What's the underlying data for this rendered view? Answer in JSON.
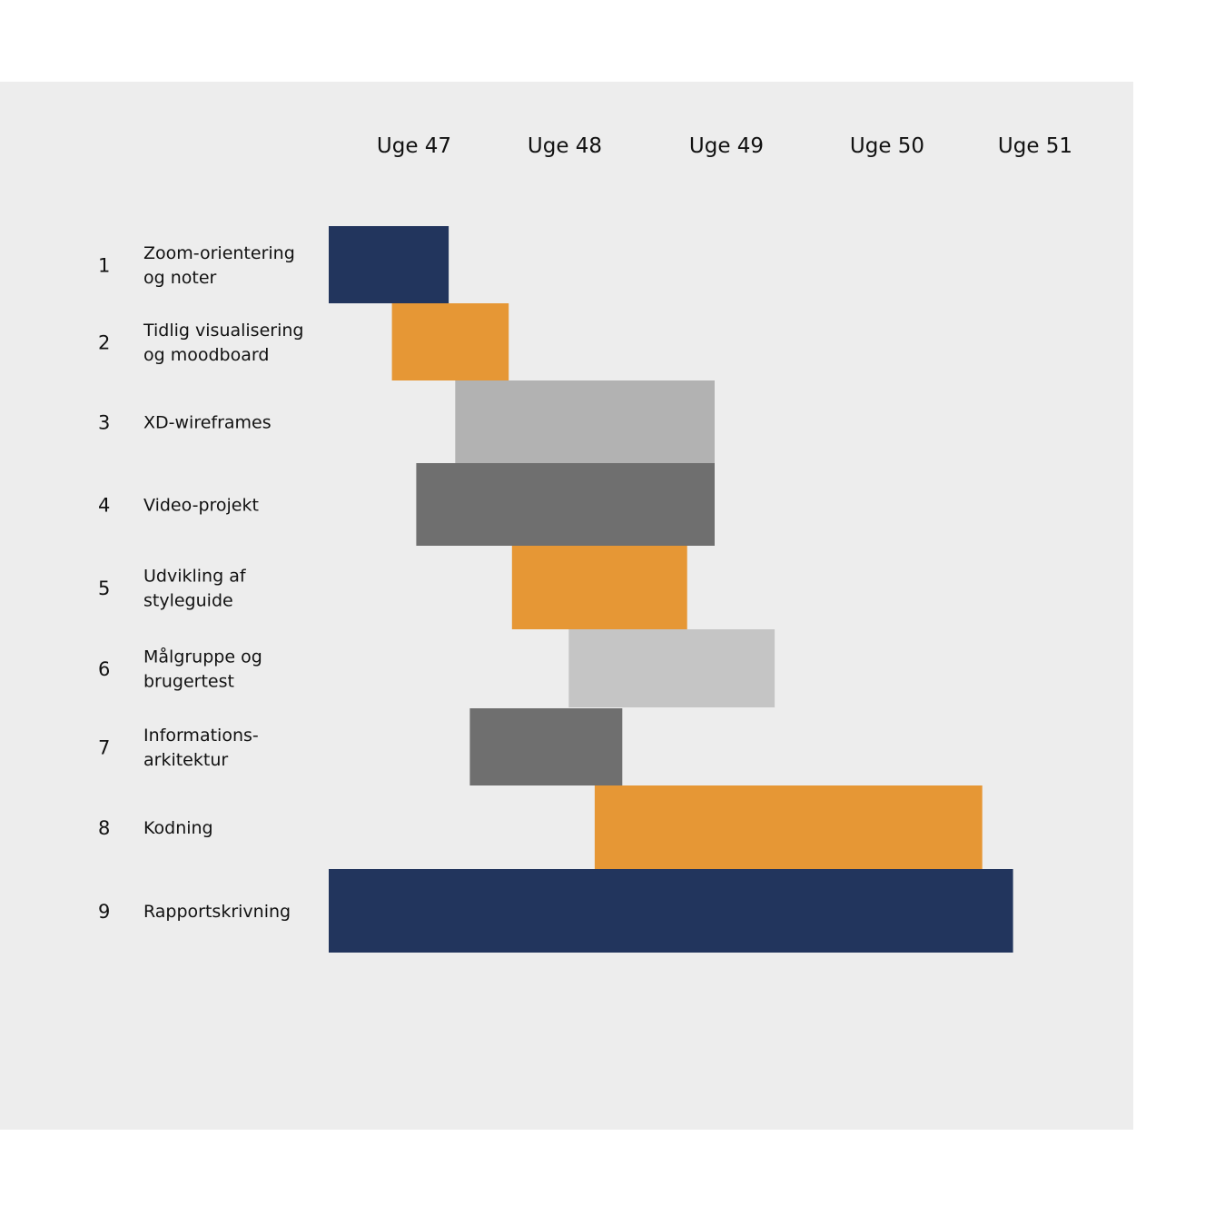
{
  "chart_data": {
    "type": "gantt",
    "x_axis": {
      "unit": "Uge",
      "ticks": [
        {
          "value": 47,
          "label": "Uge 47"
        },
        {
          "value": 48,
          "label": "Uge 48"
        },
        {
          "value": 49,
          "label": "Uge 49"
        },
        {
          "value": 50,
          "label": "Uge 50"
        },
        {
          "value": 51,
          "label": "Uge 51"
        }
      ],
      "range": [
        46.6,
        51.2
      ],
      "labels_position": "top"
    },
    "grid": false,
    "legend": "none",
    "tasks": [
      {
        "number": "1",
        "label_lines": [
          "Zoom-orientering",
          "og noter"
        ],
        "start": 46.62,
        "end": 47.36,
        "color": "#22355d"
      },
      {
        "number": "2",
        "label_lines": [
          "Tidlig visualisering",
          "og moodboard"
        ],
        "start": 47.01,
        "end": 47.73,
        "color": "#e69735"
      },
      {
        "number": "3",
        "label_lines": [
          "XD-wireframes"
        ],
        "start": 47.4,
        "end": 49.0,
        "color": "#b2b2b2"
      },
      {
        "number": "4",
        "label_lines": [
          "Video-projekt"
        ],
        "start": 47.16,
        "end": 49.0,
        "color": "#6f6f6f"
      },
      {
        "number": "5",
        "label_lines": [
          "Udvikling af",
          "styleguide"
        ],
        "start": 47.75,
        "end": 48.83,
        "color": "#e69735"
      },
      {
        "number": "6",
        "label_lines": [
          "Målgruppe og",
          "brugertest"
        ],
        "start": 48.1,
        "end": 49.37,
        "color": "#c5c5c5"
      },
      {
        "number": "7",
        "label_lines": [
          "Informations-",
          "arkitektur"
        ],
        "start": 47.49,
        "end": 48.43,
        "color": "#6f6f6f"
      },
      {
        "number": "8",
        "label_lines": [
          "Kodning"
        ],
        "start": 48.26,
        "end": 50.65,
        "color": "#e69735"
      },
      {
        "number": "9",
        "label_lines": [
          "Rapportskrivning"
        ],
        "start": 46.62,
        "end": 50.84,
        "color": "#22355d"
      }
    ]
  }
}
